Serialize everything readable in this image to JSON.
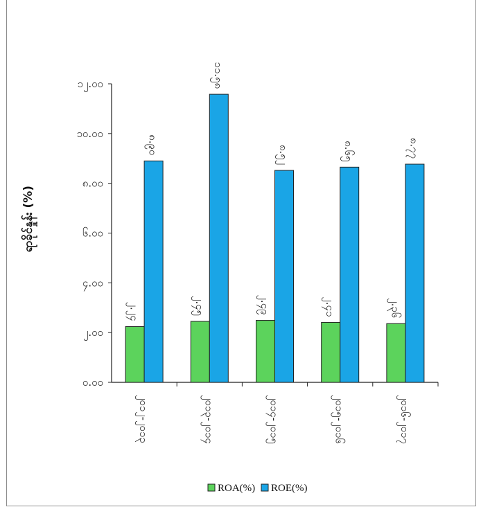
{
  "chart_data": {
    "type": "bar",
    "title": "",
    "ylabel": "ရာခိုင်နှုန်း (%)",
    "ylim": [
      0,
      12
    ],
    "yticks": [
      "၀.၀၀",
      "၂.၀၀",
      "၄.၀၀",
      "၆.၀၀",
      "၈.၀၀",
      "၁၀.၀၀",
      "၁၂.၀၀"
    ],
    "categories": [
      "၂၀၁၂-၂၀၁၃",
      "၂၀၁၃-၂၀၁၄",
      "၂၀၁၄-၂၀၁၅",
      "၂၀၁၅-၂၀၁၆",
      "၂၀၁၆-၂၀၁၇"
    ],
    "series": [
      {
        "name": "ROA(%)",
        "color": "#5cd35c",
        "values": [
          2.24,
          2.45,
          2.49,
          2.41,
          2.36
        ],
        "labels": [
          "၂.၂၄",
          "၂.၄၅",
          "၂.၄၉",
          "၂.၄၁",
          "၂.၃၆"
        ]
      },
      {
        "name": "ROE(%)",
        "color": "#1aa5e6",
        "values": [
          8.9,
          11.58,
          8.52,
          8.65,
          8.77
        ],
        "labels": [
          "၈.၉၀",
          "၁၁.၅၈",
          "၈.၅၂",
          "၈.၆၅",
          "၈.၇၇"
        ]
      }
    ],
    "legend_position": "bottom",
    "grid": false
  }
}
